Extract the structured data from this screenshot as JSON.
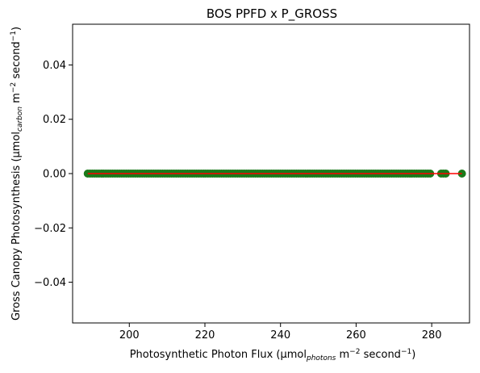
{
  "chart_data": {
    "type": "scatter",
    "title": "BOS PPFD x P_GROSS",
    "xlabel": {
      "main": "Photosynthetic Photon Flux (µmol",
      "sub": "photons",
      "mid": " m",
      "sup1": "−2",
      "mid2": " second",
      "sup2": "−1",
      "end": ")"
    },
    "ylabel": {
      "main": "Gross Canopy Photosynthesis (µmol",
      "sub": "carbon",
      "mid": " m",
      "sup1": "−2",
      "mid2": " second",
      "sup2": "−1",
      "end": ")"
    },
    "xlim": [
      185,
      290
    ],
    "ylim": [
      -0.055,
      0.055
    ],
    "xticks": [
      200,
      220,
      240,
      260,
      280
    ],
    "xtick_labels": [
      "200",
      "220",
      "240",
      "260",
      "280"
    ],
    "yticks": [
      0.04,
      0.02,
      0.0,
      -0.02,
      -0.04
    ],
    "ytick_labels": [
      "0.04",
      "0.02",
      "0.00",
      "−0.02",
      "−0.04"
    ],
    "grid": false,
    "scatter_color": "#1a7a1a",
    "line_color": "#ff0000",
    "points": {
      "x_range": [
        189,
        288
      ],
      "y_value": 0.0,
      "dense_segments": [
        [
          189,
          280
        ],
        [
          282.5,
          284
        ],
        [
          288,
          288
        ]
      ]
    },
    "fit_line": {
      "x": [
        189,
        288
      ],
      "y": [
        0.0,
        0.0
      ]
    }
  }
}
